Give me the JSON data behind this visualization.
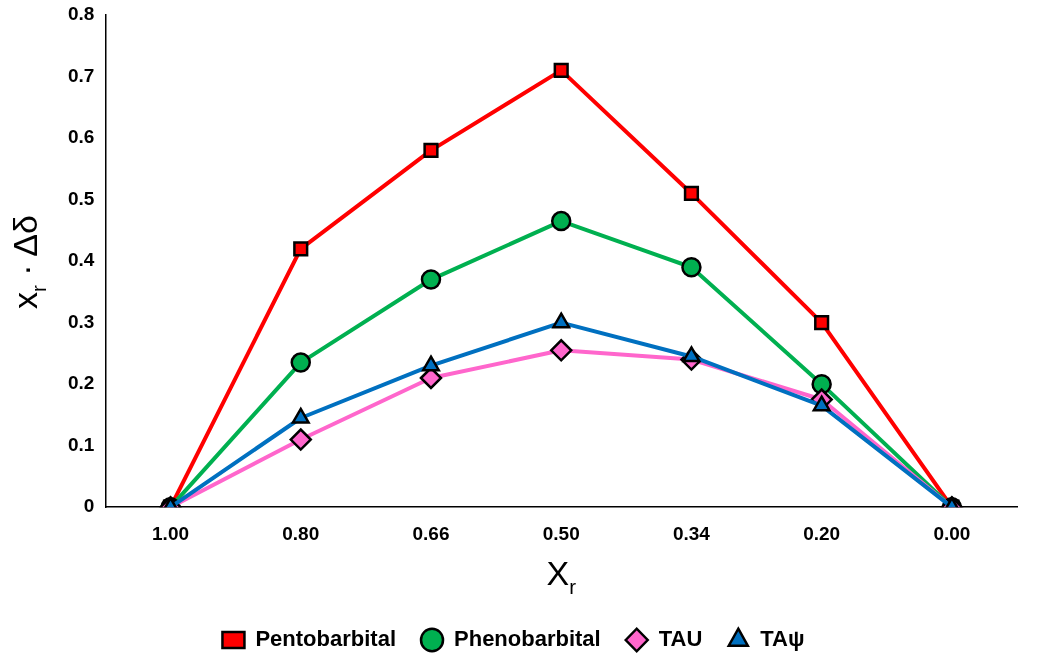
{
  "chart_data": {
    "type": "line",
    "xlabel": "X$_{r}$",
    "ylabel": "x$_{r}$ · Δδ",
    "categories": [
      "1.00",
      "0.80",
      "0.66",
      "0.50",
      "0.34",
      "0.20",
      "0.00"
    ],
    "series": [
      {
        "name": "Pentobarbital",
        "color": "#ff0000",
        "marker": "square",
        "values": [
          0,
          0.42,
          0.58,
          0.71,
          0.51,
          0.3,
          0
        ]
      },
      {
        "name": "Phenobarbital",
        "color": "#00b050",
        "marker": "circle",
        "values": [
          0,
          0.235,
          0.37,
          0.465,
          0.39,
          0.2,
          0
        ]
      },
      {
        "name": "TAU",
        "color": "#ff66cc",
        "marker": "diamond",
        "values": [
          0,
          0.11,
          0.21,
          0.255,
          0.24,
          0.175,
          0
        ]
      },
      {
        "name": "TAψ",
        "color": "#0070c0",
        "marker": "triangle",
        "values": [
          0,
          0.145,
          0.23,
          0.3,
          0.245,
          0.165,
          0
        ]
      }
    ],
    "ylim": [
      0,
      0.8
    ],
    "yticks": [
      0,
      0.1,
      0.2,
      0.3,
      0.4,
      0.5,
      0.6,
      0.7,
      0.8
    ],
    "grid": false,
    "legend": "bottom",
    "line_style": "solid"
  }
}
